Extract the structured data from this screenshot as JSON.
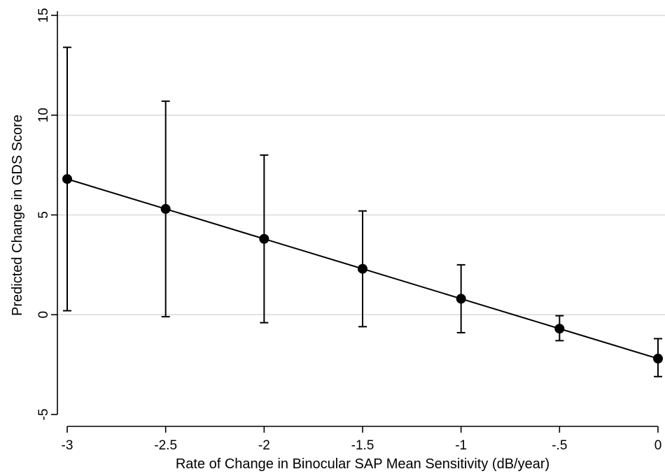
{
  "chart_data": {
    "type": "scatter",
    "title": "",
    "xlabel": "Rate of Change in Binocular SAP Mean Sensitivity (dB/year)",
    "ylabel": "Predicted Change in GDS Score",
    "xlim": [
      -3,
      0
    ],
    "ylim": [
      -5,
      15
    ],
    "x_ticks": [
      -3,
      -2.5,
      -2,
      -1.5,
      -1,
      -0.5,
      0
    ],
    "x_tick_labels": [
      "-3",
      "-2.5",
      "-2",
      "-1.5",
      "-1",
      "-.5",
      "0"
    ],
    "y_ticks": [
      -5,
      0,
      5,
      10,
      15
    ],
    "y_tick_labels": [
      "-5",
      "0",
      "5",
      "10",
      "15"
    ],
    "grid": "horizontal",
    "series": [
      {
        "x": [
          -3,
          -2.5,
          -2,
          -1.5,
          -1,
          -0.5,
          0
        ],
        "y": [
          6.8,
          5.3,
          3.8,
          2.3,
          0.8,
          -0.7,
          -2.2
        ],
        "ci_low": [
          0.2,
          -0.1,
          -0.4,
          -0.6,
          -0.9,
          -1.3,
          -3.1
        ],
        "ci_high": [
          13.4,
          10.7,
          8.0,
          5.2,
          2.5,
          -0.05,
          -1.2
        ],
        "connected": true,
        "color": "#000000"
      }
    ]
  }
}
